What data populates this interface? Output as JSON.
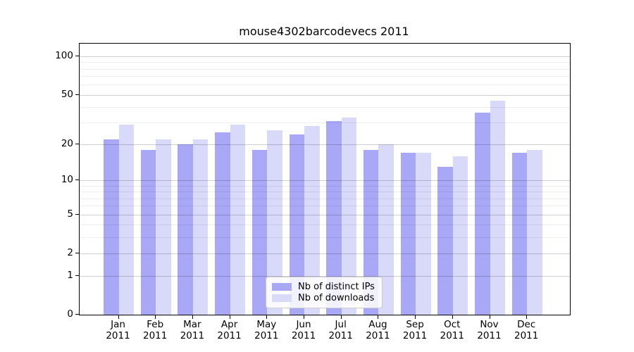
{
  "title": "mouse4302barcodevecs 2011",
  "chart_data": {
    "type": "bar",
    "title": "mouse4302barcodevecs 2011",
    "categories": [
      "Jan",
      "Feb",
      "Mar",
      "Apr",
      "May",
      "Jun",
      "Jul",
      "Aug",
      "Sep",
      "Oct",
      "Nov",
      "Dec"
    ],
    "year": "2011",
    "series": [
      {
        "name": "Nb of distinct IPs",
        "color": "#a8a8f6",
        "values": [
          22,
          18,
          20,
          25,
          18,
          24,
          31,
          18,
          17,
          13,
          36,
          17
        ]
      },
      {
        "name": "Nb of downloads",
        "color": "#d9d9f9",
        "values": [
          29,
          22,
          22,
          29,
          26,
          28,
          33,
          20,
          17,
          16,
          45,
          18
        ]
      }
    ],
    "y_axis": {
      "scale": "log1p",
      "ticks": [
        0,
        1,
        2,
        5,
        10,
        20,
        50,
        100
      ],
      "minor_ticks": [
        3,
        4,
        6,
        7,
        8,
        9,
        30,
        40,
        60,
        70,
        80,
        90
      ],
      "max": 126
    },
    "x_axis": {
      "label_line2": "2011"
    },
    "legend": {
      "position": "bottom-center"
    },
    "grid": true
  }
}
